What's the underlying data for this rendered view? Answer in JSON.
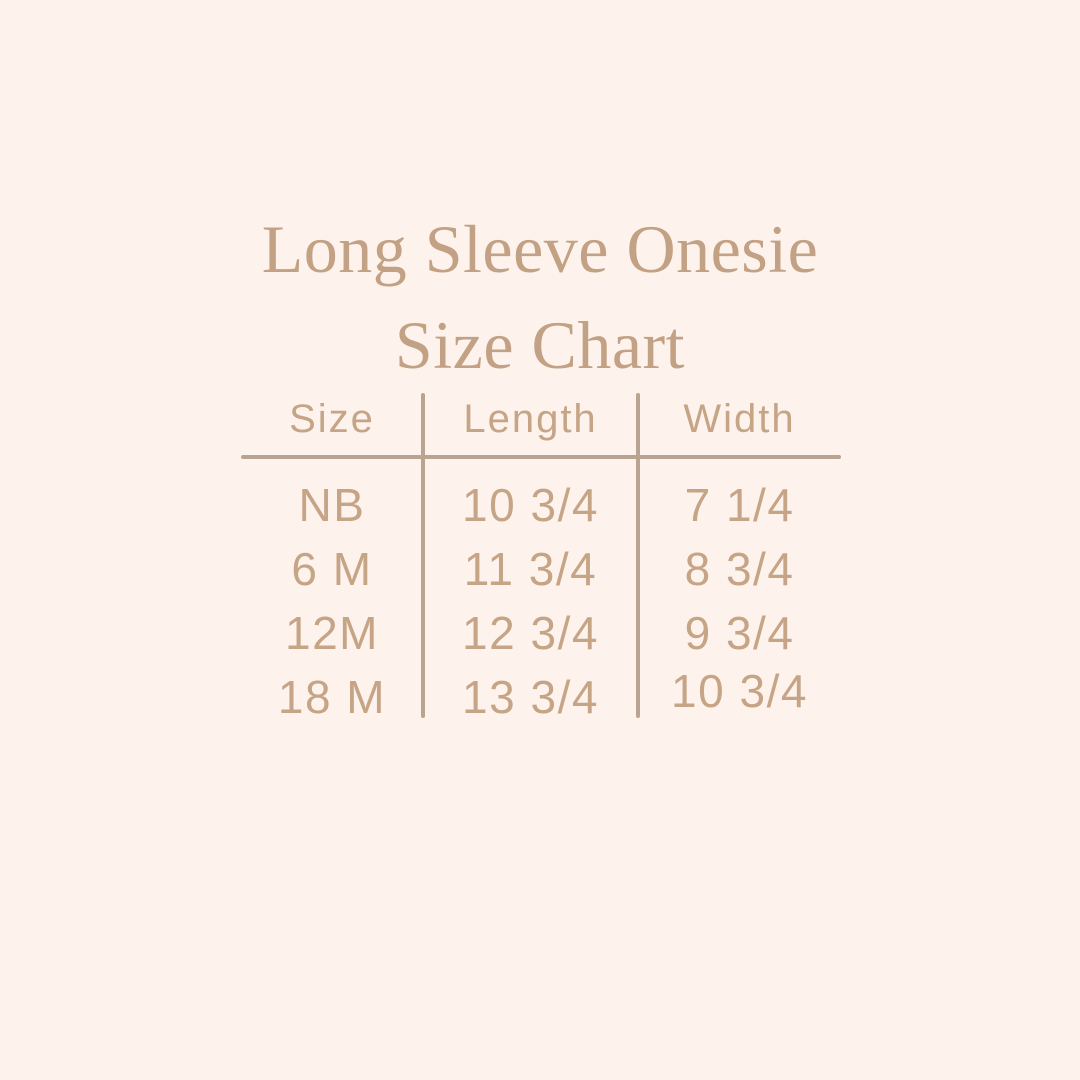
{
  "page": {
    "background_color": "#fdf3ec"
  },
  "title": {
    "line1": "Long Sleeve Onesie",
    "line2": "Size Chart",
    "color": "#c2a184"
  },
  "table": {
    "text_color": "#c6a486",
    "line_color": "#b9a492",
    "columns": [
      "Size",
      "Length",
      "Width"
    ],
    "rows": [
      {
        "size": "NB",
        "length": "10 3/4",
        "width": "7 1/4"
      },
      {
        "size": "6 M",
        "length": "11 3/4",
        "width": "8 3/4"
      },
      {
        "size": "12M",
        "length": "12 3/4",
        "width": "9 3/4"
      },
      {
        "size": "18 M",
        "length": "13 3/4",
        "width": "10 3/4"
      }
    ]
  },
  "chart_data": {
    "type": "table",
    "title": "Long Sleeve Onesie Size Chart",
    "columns": [
      "Size",
      "Length",
      "Width"
    ],
    "rows": [
      [
        "NB",
        "10 3/4",
        "7 1/4"
      ],
      [
        "6 M",
        "11 3/4",
        "8 3/4"
      ],
      [
        "12M",
        "12 3/4",
        "9 3/4"
      ],
      [
        "18 M",
        "13 3/4",
        "10 3/4"
      ]
    ]
  }
}
